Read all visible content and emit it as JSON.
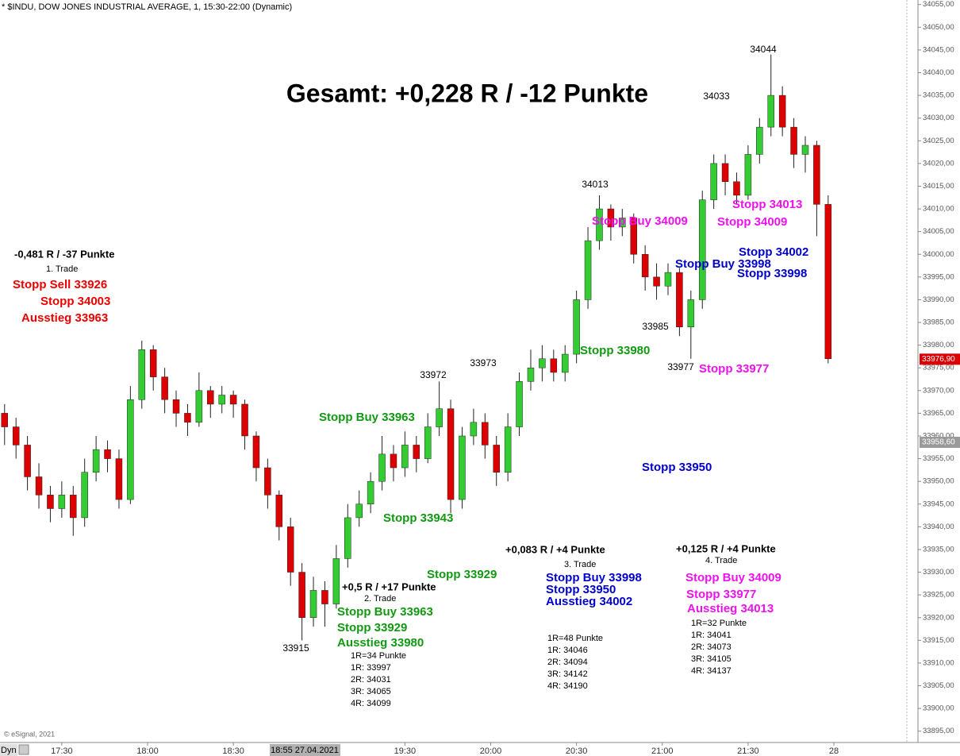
{
  "chart_data": {
    "type": "candlestick",
    "header": "* $INDU, DOW JONES INDUSTRIAL AVERAGE, 1, 15:30-22:00 (Dynamic)",
    "title": "Gesamt: +0,228 R / -12 Punkte",
    "watermark": "© eSignal, 2021",
    "scale_mode": "Dyn",
    "cursor_label": "18:55 27.04.2021",
    "up_color": "#33cc33",
    "down_color": "#dd0000",
    "x": [
      1030,
      1034,
      1038,
      1042,
      1046,
      1050,
      1054,
      1058,
      1062,
      1066,
      1070,
      1074,
      1078,
      1082,
      1086,
      1090,
      1094,
      1098,
      1102,
      1106,
      1110,
      1114,
      1118,
      1122,
      1126,
      1130,
      1134,
      1138,
      1142,
      1146,
      1150,
      1154,
      1158,
      1162,
      1166,
      1170,
      1174,
      1178,
      1182,
      1186,
      1190,
      1194,
      1198,
      1202,
      1206,
      1210,
      1214,
      1218,
      1222,
      1226,
      1230,
      1234,
      1238,
      1242,
      1246,
      1250,
      1254,
      1258,
      1262,
      1266,
      1270,
      1274,
      1278,
      1282,
      1286,
      1290,
      1294,
      1298,
      1302,
      1306,
      1310,
      1314,
      1318
    ],
    "open": [
      33965,
      33962,
      33958,
      33951,
      33947,
      33944,
      33947,
      33942,
      33952,
      33957,
      33955,
      33946,
      33968,
      33979,
      33973,
      33968,
      33965,
      33963,
      33970,
      33967,
      33969,
      33967,
      33960,
      33953,
      33947,
      33940,
      33930,
      33920,
      33926,
      33923,
      33933,
      33942,
      33945,
      33950,
      33956,
      33953,
      33958,
      33955,
      33962,
      33966,
      33946,
      33960,
      33963,
      33958,
      33952,
      33962,
      33972,
      33975,
      33977,
      33974,
      33978,
      33990,
      34003,
      34010,
      34006,
      34008,
      34000,
      33995,
      33993,
      33996,
      33984,
      33990,
      34012,
      34020,
      34016,
      34013,
      34022,
      34028,
      34035,
      34028,
      34022,
      34024,
      34011
    ],
    "high": [
      33967,
      33964,
      33960,
      33954,
      33949,
      33950,
      33949,
      33955,
      33960,
      33959,
      33957,
      33971,
      33981,
      33980,
      33975,
      33970,
      33967,
      33974,
      33971,
      33971,
      33970,
      33968,
      33961,
      33955,
      33948,
      33942,
      33932,
      33929,
      33928,
      33936,
      33945,
      33948,
      33952,
      33960,
      33958,
      33961,
      33960,
      33965,
      33972,
      33968,
      33962,
      33966,
      33965,
      33960,
      33965,
      33974,
      33979,
      33980,
      33979,
      33980,
      33992,
      34006,
      34013,
      34011,
      34010,
      34009,
      34002,
      33998,
      33998,
      33997,
      33992,
      34014,
      34022,
      34022,
      34018,
      34024,
      34030,
      34044,
      34037,
      34030,
      34026,
      34025,
      34013
    ],
    "low": [
      33958,
      33955,
      33948,
      33944,
      33941,
      33942,
      33938,
      33940,
      33950,
      33952,
      33944,
      33945,
      33966,
      33970,
      33965,
      33962,
      33960,
      33962,
      33964,
      33965,
      33964,
      33957,
      33950,
      33944,
      33937,
      33927,
      33915,
      33918,
      33918,
      33922,
      33931,
      33940,
      33943,
      33948,
      33950,
      33951,
      33952,
      33954,
      33960,
      33943,
      33944,
      33958,
      33955,
      33949,
      33950,
      33960,
      33970,
      33972,
      33972,
      33972,
      33976,
      33988,
      34001,
      34003,
      34004,
      33998,
      33992,
      33990,
      33991,
      33982,
      33977,
      33988,
      34010,
      34013,
      34011,
      34012,
      34020,
      34026,
      34026,
      34019,
      34018,
      34004,
      33976
    ],
    "close": [
      33962,
      33958,
      33951,
      33947,
      33944,
      33947,
      33942,
      33952,
      33957,
      33955,
      33946,
      33968,
      33979,
      33973,
      33968,
      33965,
      33963,
      33970,
      33967,
      33969,
      33967,
      33960,
      33953,
      33947,
      33940,
      33930,
      33920,
      33926,
      33923,
      33933,
      33942,
      33945,
      33950,
      33956,
      33953,
      33958,
      33955,
      33962,
      33966,
      33946,
      33960,
      33963,
      33958,
      33952,
      33962,
      33972,
      33975,
      33977,
      33974,
      33978,
      33990,
      34003,
      34010,
      34006,
      34008,
      34000,
      33995,
      33993,
      33996,
      33984,
      33990,
      34012,
      34020,
      34016,
      34013,
      34022,
      34028,
      34035,
      34028,
      34022,
      34024,
      34011,
      33977
    ],
    "xlim": [
      1028.4,
      1349.4
    ],
    "xticks": [
      {
        "value": 1050,
        "label": "17:30"
      },
      {
        "value": 1080,
        "label": "18:00"
      },
      {
        "value": 1110,
        "label": "18:30"
      },
      {
        "value": 1170,
        "label": "19:30"
      },
      {
        "value": 1200,
        "label": "20:00"
      },
      {
        "value": 1230,
        "label": "20:30"
      },
      {
        "value": 1260,
        "label": "21:00"
      },
      {
        "value": 1290,
        "label": "21:30"
      },
      {
        "value": 1320,
        "label": "28"
      }
    ],
    "ylim": [
      33892.5,
      34056
    ],
    "yticks": [
      {
        "value": 33895,
        "label": "33895,00"
      },
      {
        "value": 33900,
        "label": "33900,00"
      },
      {
        "value": 33905,
        "label": "33905,00"
      },
      {
        "value": 33910,
        "label": "33910,00"
      },
      {
        "value": 33915,
        "label": "33915,00"
      },
      {
        "value": 33920,
        "label": "33920,00"
      },
      {
        "value": 33925,
        "label": "33925,00"
      },
      {
        "value": 33930,
        "label": "33930,00"
      },
      {
        "value": 33935,
        "label": "33935,00"
      },
      {
        "value": 33940,
        "label": "33940,00"
      },
      {
        "value": 33945,
        "label": "33945,00"
      },
      {
        "value": 33950,
        "label": "33950,00"
      },
      {
        "value": 33955,
        "label": "33955,00"
      },
      {
        "value": 33960,
        "label": "33960,00"
      },
      {
        "value": 33965,
        "label": "33965,00"
      },
      {
        "value": 33970,
        "label": "33970,00"
      },
      {
        "value": 33975,
        "label": "33975,00"
      },
      {
        "value": 33980,
        "label": "33980,00"
      },
      {
        "value": 33985,
        "label": "33985,00"
      },
      {
        "value": 33990,
        "label": "33990,00"
      },
      {
        "value": 33995,
        "label": "33995,00"
      },
      {
        "value": 34000,
        "label": "34000,00"
      },
      {
        "value": 34005,
        "label": "34005,00"
      },
      {
        "value": 34010,
        "label": "34010,00"
      },
      {
        "value": 34015,
        "label": "34015,00"
      },
      {
        "value": 34020,
        "label": "34020,00"
      },
      {
        "value": 34025,
        "label": "34025,00"
      },
      {
        "value": 34030,
        "label": "34030,00"
      },
      {
        "value": 34035,
        "label": "34035,00"
      },
      {
        "value": 34040,
        "label": "34040,00"
      },
      {
        "value": 34045,
        "label": "34045,00"
      },
      {
        "value": 34050,
        "label": "34050,00"
      },
      {
        "value": 34055,
        "label": "34055,00"
      }
    ],
    "price_labels": [
      {
        "value": 33976.9,
        "label": "33976,90",
        "color": "#dd0000"
      },
      {
        "value": 33958.6,
        "label": "33958,60",
        "color": "#9a9a9a"
      }
    ],
    "annotations": [
      {
        "text": "-0,481 R / -37 Punkte",
        "color": "#000000"
      },
      {
        "text": "1. Trade",
        "color": "#000000"
      },
      {
        "text": "Stopp Sell 33926",
        "color": "#ee0000"
      },
      {
        "text": "Stopp 34003",
        "color": "#ee0000"
      },
      {
        "text": "Ausstieg 33963",
        "color": "#ee0000"
      },
      {
        "text": "Stopp Buy 33963",
        "color": "#119911"
      },
      {
        "text": "Stopp 33943",
        "color": "#119911"
      },
      {
        "text": "Stopp 33929",
        "color": "#119911"
      },
      {
        "text": "Stopp 33980",
        "color": "#119911"
      },
      {
        "text": "+0,5 R / +17 Punkte",
        "color": "#000000"
      },
      {
        "text": "2. Trade",
        "color": "#000000"
      },
      {
        "text": "Stopp Buy 33963",
        "color": "#119911"
      },
      {
        "text": "Stopp 33929",
        "color": "#119911"
      },
      {
        "text": "Ausstieg 33980",
        "color": "#119911"
      },
      {
        "text": "1R=34 Punkte",
        "color": "#000000"
      },
      {
        "text": "1R: 33997",
        "color": "#000000"
      },
      {
        "text": "2R: 34031",
        "color": "#000000"
      },
      {
        "text": "3R: 34065",
        "color": "#000000"
      },
      {
        "text": "4R: 34099",
        "color": "#000000"
      },
      {
        "text": "+0,083 R / +4 Punkte",
        "color": "#000000"
      },
      {
        "text": "3. Trade",
        "color": "#000000"
      },
      {
        "text": "Stopp Buy 33998",
        "color": "#0000cc"
      },
      {
        "text": "Stopp 33950",
        "color": "#0000cc"
      },
      {
        "text": "Ausstieg 34002",
        "color": "#0000cc"
      },
      {
        "text": "Stopp 33950",
        "color": "#0000cc"
      },
      {
        "text": "Stopp Buy 33998",
        "color": "#0000cc"
      },
      {
        "text": "Stopp 34002",
        "color": "#0000cc"
      },
      {
        "text": "Stopp 33998",
        "color": "#0000cc"
      },
      {
        "text": "1R=48 Punkte",
        "color": "#000000"
      },
      {
        "text": "1R: 34046",
        "color": "#000000"
      },
      {
        "text": "2R: 34094",
        "color": "#000000"
      },
      {
        "text": "3R: 34142",
        "color": "#000000"
      },
      {
        "text": "4R: 34190",
        "color": "#000000"
      },
      {
        "text": "+0,125 R / +4 Punkte",
        "color": "#000000"
      },
      {
        "text": "4. Trade",
        "color": "#000000"
      },
      {
        "text": "Stopp Buy 34009",
        "color": "#ee11ee"
      },
      {
        "text": "Stopp 33977",
        "color": "#ee11ee"
      },
      {
        "text": "Ausstieg 34013",
        "color": "#ee11ee"
      },
      {
        "text": "Stopp Buy 34009",
        "color": "#ee11ee"
      },
      {
        "text": "Stopp 34013",
        "color": "#ee11ee"
      },
      {
        "text": "Stopp 34009",
        "color": "#ee11ee"
      },
      {
        "text": "Stopp 33977",
        "color": "#ee11ee"
      },
      {
        "text": "1R=32 Punkte",
        "color": "#000000"
      },
      {
        "text": "1R: 34041",
        "color": "#000000"
      },
      {
        "text": "2R: 34073",
        "color": "#000000"
      },
      {
        "text": "3R: 34105",
        "color": "#000000"
      },
      {
        "text": "4R: 34137",
        "color": "#000000"
      },
      {
        "text": "34044",
        "color": "#000000"
      },
      {
        "text": "34033",
        "color": "#000000"
      },
      {
        "text": "34013",
        "color": "#000000"
      },
      {
        "text": "33985",
        "color": "#000000"
      },
      {
        "text": "33977",
        "color": "#000000"
      },
      {
        "text": "33972",
        "color": "#000000"
      },
      {
        "text": "33973",
        "color": "#000000"
      },
      {
        "text": "33915",
        "color": "#000000"
      }
    ]
  }
}
